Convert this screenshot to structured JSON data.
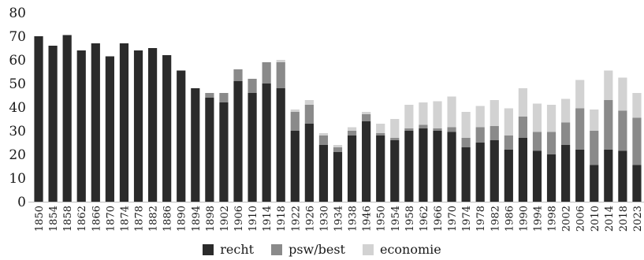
{
  "chart_data": {
    "type": "bar",
    "stacked": true,
    "title": "",
    "xlabel": "",
    "ylabel": "",
    "ylim": [
      0,
      80
    ],
    "yticks": [
      0,
      10,
      20,
      30,
      40,
      50,
      60,
      70,
      80
    ],
    "grid": false,
    "legend_position": "bottom-center",
    "categories": [
      "1850",
      "1854",
      "1858",
      "1862",
      "1866",
      "1870",
      "1874",
      "1878",
      "1882",
      "1886",
      "1890",
      "1894",
      "1898",
      "1902",
      "1906",
      "1910",
      "1914",
      "1918",
      "1922",
      "1926",
      "1930",
      "1934",
      "1938",
      "1946",
      "1950",
      "1954",
      "1958",
      "1962",
      "1966",
      "1970",
      "1974",
      "1978",
      "1982",
      "1986",
      "1990",
      "1994",
      "1998",
      "2002",
      "2006",
      "2010",
      "2014",
      "2018",
      "2023"
    ],
    "series": [
      {
        "name": "recht",
        "color": "#2b2b2b",
        "values": [
          70,
          66,
          70.5,
          64,
          67,
          61.5,
          67,
          64,
          65,
          62,
          55.5,
          48,
          44,
          42,
          51,
          46,
          50,
          48,
          30,
          33,
          24,
          21,
          28,
          34,
          28,
          26,
          30,
          31,
          30,
          29.5,
          23,
          25,
          26,
          22,
          27,
          21.5,
          20,
          24,
          22,
          15.5,
          22,
          21.5,
          15.5
        ]
      },
      {
        "name": "psw/best",
        "color": "#8a8a8a",
        "values": [
          0,
          0,
          0,
          0,
          0,
          0,
          0,
          0,
          0,
          0,
          0,
          0,
          2,
          4,
          5,
          6,
          9,
          11,
          8,
          8,
          4,
          2,
          2,
          3,
          1,
          1,
          1,
          1.5,
          1,
          2,
          4,
          6.5,
          6,
          6,
          9,
          8,
          9.5,
          9.5,
          17.5,
          14.5,
          21,
          17,
          20
        ]
      },
      {
        "name": "economie",
        "color": "#d2d2d2",
        "values": [
          0,
          0,
          0,
          0,
          0,
          0,
          0,
          0,
          0,
          0,
          0,
          0,
          0,
          0,
          0,
          0,
          0,
          1,
          1,
          2,
          1,
          1,
          1.5,
          1,
          4,
          8,
          10,
          9.5,
          11.5,
          13,
          11,
          9,
          11,
          11.5,
          12,
          12,
          11.5,
          10,
          12,
          9,
          12.5,
          14,
          10.5
        ]
      }
    ]
  }
}
